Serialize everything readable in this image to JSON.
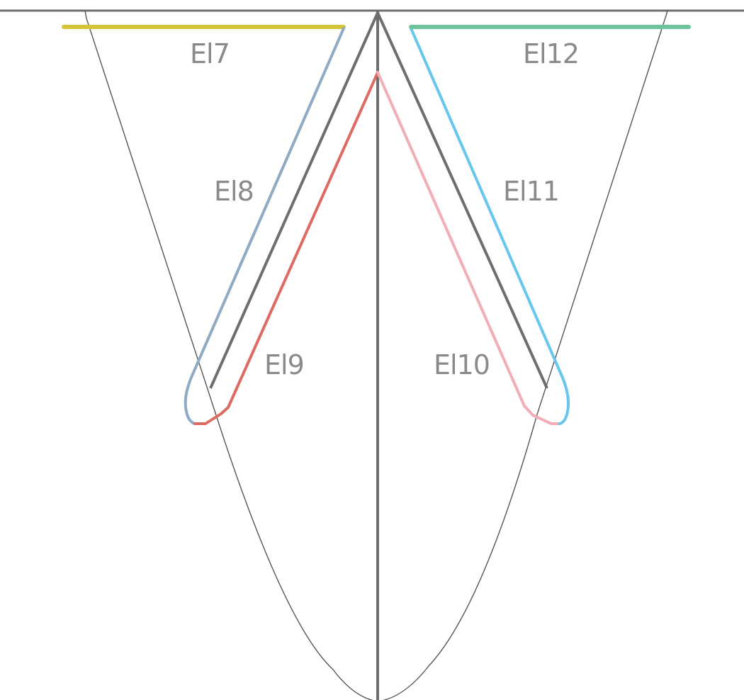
{
  "diagram": {
    "labels": {
      "el7": "El7",
      "el8": "El8",
      "el9": "El9",
      "el10": "El10",
      "el11": "El11",
      "el12": "El12"
    },
    "colors": {
      "el7": "#d4c43a",
      "el8": "#8eaac4",
      "el9": "#de6b63",
      "el10": "#f2aeb6",
      "el11": "#66c6ee",
      "el12": "#6ac59a",
      "frame": "#6e6e6e",
      "outline": "#555555",
      "label": "#8a8a8a"
    }
  }
}
